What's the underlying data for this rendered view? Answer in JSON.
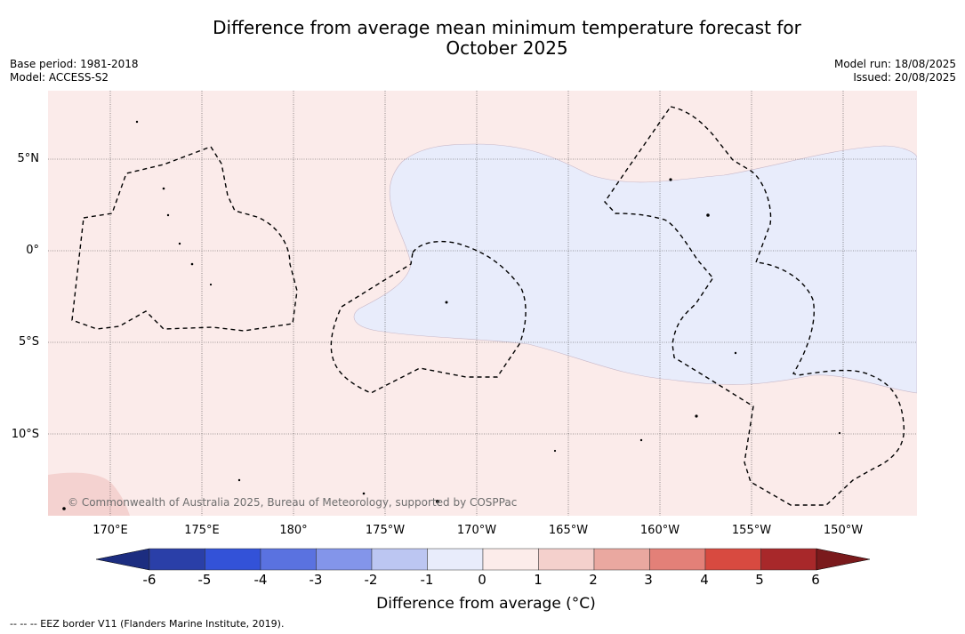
{
  "title_line1": "Difference from average mean minimum temperature forecast for",
  "title_line2": "October 2025",
  "base_period": "Base period: 1981-2018",
  "model": "Model: ACCESS-S2",
  "model_run": "Model run: 18/08/2025",
  "issued": "Issued: 20/08/2025",
  "lat_labels": [
    "5°N",
    "0°",
    "5°S",
    "10°S"
  ],
  "lon_labels": [
    "170°E",
    "175°E",
    "180°",
    "175°W",
    "170°W",
    "165°W",
    "160°W",
    "155°W",
    "150°W"
  ],
  "credit": "© Commonwealth of Australia 2025, Bureau of Meteorology, supported by COSPPac",
  "colorbar": {
    "label": "Difference from average (°C)",
    "ticks": [
      "-6",
      "-5",
      "-4",
      "-3",
      "-2",
      "-1",
      "0",
      "1",
      "2",
      "3",
      "4",
      "5",
      "6"
    ],
    "colors": [
      "#2a3fa8",
      "#3352d8",
      "#5a72e0",
      "#8395ea",
      "#bcc6f2",
      "#e8ecfb",
      "#fcecea",
      "#f4d0cc",
      "#eaa8a0",
      "#e38078",
      "#d84a40",
      "#a8282a"
    ],
    "under_color": "#1c2d80",
    "over_color": "#7a1a1c"
  },
  "map_colors": {
    "background": "#fbebea",
    "cool_region": "#e8ecfb",
    "warm_region": "#f4d2d0"
  },
  "legend_note": "--  --  -- EEZ border V11 (Flanders Marine Institute, 2019)."
}
